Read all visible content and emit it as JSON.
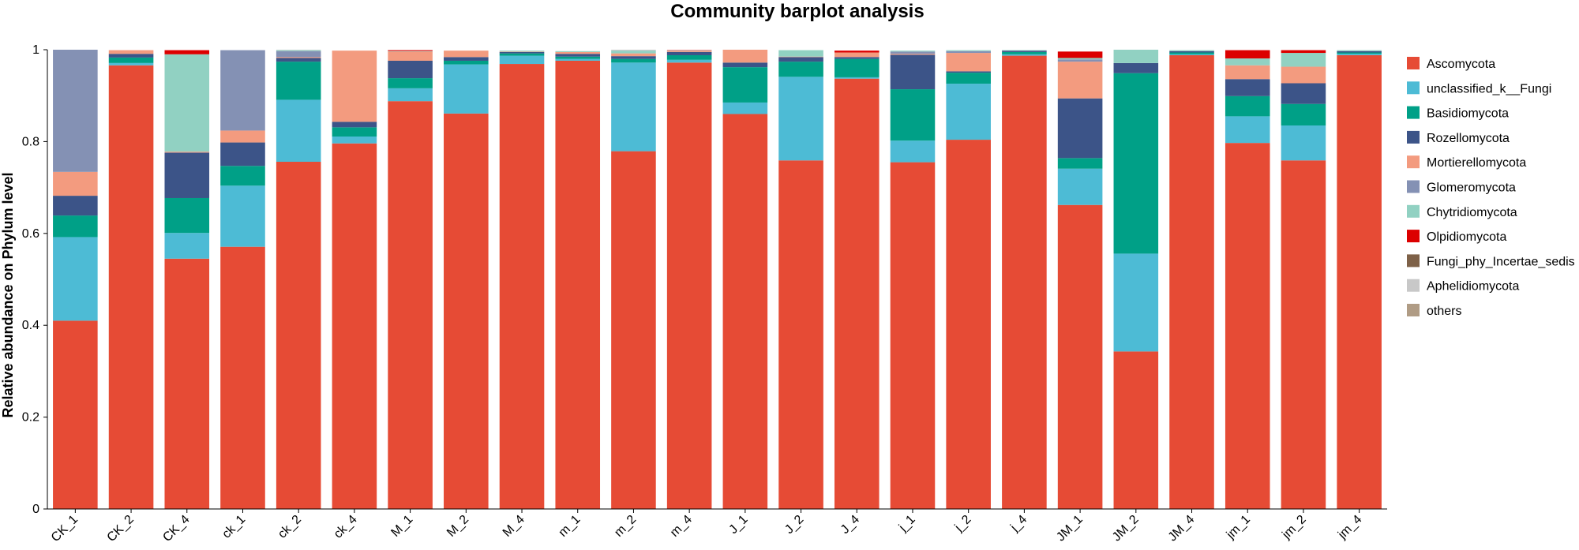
{
  "chart_data": {
    "type": "bar",
    "stacked": true,
    "title": "Community barplot analysis",
    "ylabel": "Relative abundance on Phylum level",
    "xlabel": "",
    "ylim": [
      0,
      1
    ],
    "yticks": [
      "0",
      "0.2",
      "0.4",
      "0.6",
      "0.8",
      "1"
    ],
    "legend_position": "right",
    "categories": [
      "CK_1",
      "CK_2",
      "CK_4",
      "ck_1",
      "ck_2",
      "ck_4",
      "M_1",
      "M_2",
      "M_4",
      "m_1",
      "m_2",
      "m_4",
      "J_1",
      "J_2",
      "J_4",
      "j_1",
      "j_2",
      "j_4",
      "JM_1",
      "JM_2",
      "JM_4",
      "jm_1",
      "jm_2",
      "jm_4"
    ],
    "series": [
      {
        "name": "Ascomycota",
        "color": "#E64B35",
        "values": [
          0.41,
          0.966,
          0.545,
          0.571,
          0.756,
          0.796,
          0.888,
          0.861,
          0.969,
          0.976,
          0.779,
          0.972,
          0.86,
          0.759,
          0.937,
          0.755,
          0.804,
          0.987,
          0.662,
          0.343,
          0.988,
          0.797,
          0.759,
          0.988
        ]
      },
      {
        "name": "unclassified_k__Fungi",
        "color": "#4DBBD5",
        "values": [
          0.182,
          0.005,
          0.056,
          0.133,
          0.135,
          0.015,
          0.028,
          0.107,
          0.018,
          0.004,
          0.193,
          0.006,
          0.025,
          0.182,
          0.003,
          0.047,
          0.122,
          0.003,
          0.079,
          0.213,
          0.002,
          0.058,
          0.076,
          0.003
        ]
      },
      {
        "name": "Basidiomycota",
        "color": "#00A087",
        "values": [
          0.047,
          0.012,
          0.076,
          0.043,
          0.083,
          0.02,
          0.022,
          0.008,
          0.005,
          0.005,
          0.008,
          0.01,
          0.077,
          0.033,
          0.04,
          0.112,
          0.024,
          0.005,
          0.023,
          0.393,
          0.004,
          0.044,
          0.047,
          0.003
        ]
      },
      {
        "name": "Rozellomycota",
        "color": "#3C5488",
        "values": [
          0.043,
          0.008,
          0.099,
          0.051,
          0.008,
          0.012,
          0.038,
          0.008,
          0.003,
          0.006,
          0.006,
          0.007,
          0.01,
          0.01,
          0.004,
          0.075,
          0.003,
          0.003,
          0.13,
          0.022,
          0.003,
          0.037,
          0.045,
          0.003
        ]
      },
      {
        "name": "Mortierellomycota",
        "color": "#F39B7F",
        "values": [
          0.052,
          0.008,
          0.002,
          0.026,
          0.002,
          0.155,
          0.02,
          0.014,
          0.001,
          0.004,
          0.006,
          0.002,
          0.028,
          0.001,
          0.01,
          0.002,
          0.04,
          0.0,
          0.08,
          0.0,
          0.0,
          0.03,
          0.036,
          0.0
        ]
      },
      {
        "name": "Glomeromycota",
        "color": "#8491B4",
        "values": [
          0.266,
          0.0,
          0.0,
          0.175,
          0.013,
          0.0,
          0.0,
          0.0,
          0.0,
          0.0,
          0.0,
          0.0,
          0.0,
          0.0,
          0.0,
          0.005,
          0.004,
          0.0,
          0.005,
          0.0,
          0.0,
          0.0,
          0.0,
          0.0
        ]
      },
      {
        "name": "Chytridiomycota",
        "color": "#91D1C2",
        "values": [
          0.0,
          0.0,
          0.212,
          0.0,
          0.002,
          0.0,
          0.001,
          0.0,
          0.002,
          0.002,
          0.006,
          0.001,
          0.0,
          0.014,
          0.0,
          0.002,
          0.002,
          0.001,
          0.003,
          0.029,
          0.002,
          0.015,
          0.03,
          0.002
        ]
      },
      {
        "name": "Olpidiomycota",
        "color": "#DC0000",
        "values": [
          0.0,
          0.0,
          0.009,
          0.0,
          0.0,
          0.0,
          0.002,
          0.0,
          0.0,
          0.0,
          0.0,
          0.001,
          0.0,
          0.0,
          0.004,
          0.0,
          0.0,
          0.0,
          0.014,
          0.0,
          0.0,
          0.018,
          0.006,
          0.0
        ]
      },
      {
        "name": "Fungi_phy_Incertae_sedis",
        "color": "#7E6148",
        "values": [
          0,
          0,
          0,
          0,
          0,
          0,
          0,
          0,
          0,
          0,
          0,
          0,
          0,
          0,
          0,
          0,
          0,
          0,
          0,
          0,
          0,
          0,
          0,
          0
        ]
      },
      {
        "name": "Aphelidiomycota",
        "color": "#C8C8C8",
        "values": [
          0,
          0,
          0,
          0,
          0.001,
          0,
          0,
          0,
          0,
          0,
          0.002,
          0,
          0,
          0,
          0,
          0,
          0,
          0,
          0,
          0,
          0,
          0,
          0,
          0
        ]
      },
      {
        "name": "others",
        "color": "#B09C85",
        "values": [
          0,
          0,
          0,
          0,
          0,
          0,
          0,
          0,
          0,
          0,
          0,
          0,
          0,
          0,
          0,
          0,
          0,
          0,
          0,
          0,
          0,
          0,
          0,
          0
        ]
      }
    ]
  }
}
